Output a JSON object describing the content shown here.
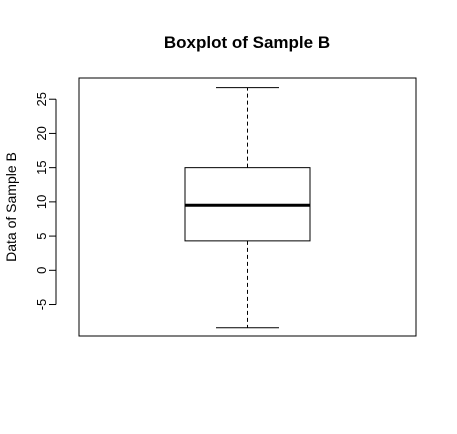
{
  "chart_data": {
    "type": "boxplot",
    "title": "Boxplot of Sample B",
    "xlabel": "",
    "ylabel": "Data of Sample B",
    "ylim": [
      -9.6,
      28.1
    ],
    "yticks": [
      -5,
      0,
      5,
      10,
      15,
      20,
      25
    ],
    "ytick_labels": [
      "-5",
      "0",
      "5",
      "10",
      "15",
      "20",
      "25"
    ],
    "box": {
      "min": -8.4,
      "q1": 4.3,
      "median": 9.5,
      "q3": 15.0,
      "max": 26.7
    },
    "grid": false,
    "colors": {
      "box_fill": "#ffffff",
      "stroke": "#000000"
    }
  }
}
